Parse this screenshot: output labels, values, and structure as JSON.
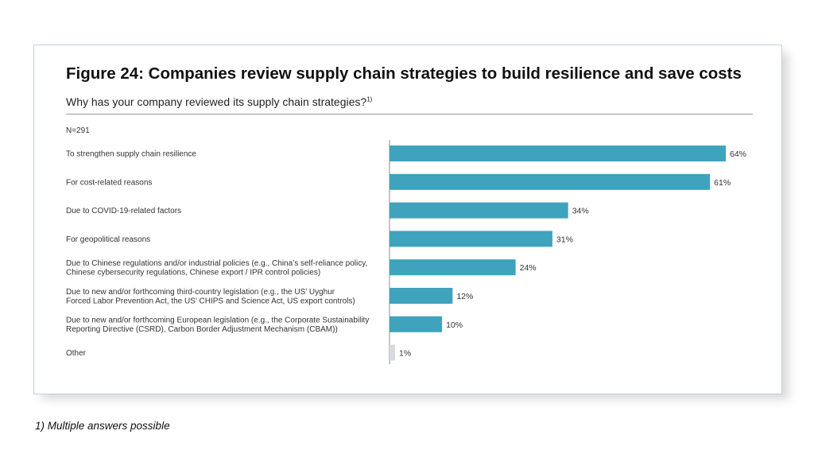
{
  "figure": {
    "title": "Figure 24: Companies review supply chain strategies to build resilience and save costs",
    "subtitle": "Why has your company reviewed its supply chain strategies?",
    "subtitle_note": "1)",
    "sample_size": "N=291",
    "footnote": "1) Multiple answers possible"
  },
  "chart_data": {
    "type": "bar",
    "orientation": "horizontal",
    "title": "Figure 24: Companies review supply chain strategies to build resilience and save costs",
    "subtitle": "Why has your company reviewed its supply chain strategies?",
    "xlabel": "",
    "ylabel": "",
    "xlim": [
      0,
      64
    ],
    "grid": false,
    "categories": [
      [
        "To strengthen supply chain resilience"
      ],
      [
        "For cost-related reasons"
      ],
      [
        "Due to COVID-19-related factors"
      ],
      [
        "For geopolitical reasons"
      ],
      [
        "Due to Chinese regulations and/or industrial policies (e.g., China’s self-reliance policy,",
        "Chinese cybersecurity regulations, Chinese export / IPR control policies)"
      ],
      [
        "Due to new and/or forthcoming third-country legislation (e.g., the US’ Uyghur",
        "Forced Labor Prevention Act, the US’ CHIPS and Science Act, US export controls)"
      ],
      [
        "Due to new and/or forthcoming European legislation (e.g., the Corporate Sustainability",
        "Reporting Directive (CSRD), Carbon Border Adjustment Mechanism (CBAM))"
      ],
      [
        "Other"
      ]
    ],
    "values": [
      64,
      61,
      34,
      31,
      24,
      12,
      10,
      1
    ],
    "value_labels": [
      "64%",
      "61%",
      "34%",
      "31%",
      "24%",
      "12%",
      "10%",
      "1%"
    ],
    "colors": {
      "bar": "#3fa3bd",
      "other_bar": "#d9dbe0",
      "axis": "#8c8c8c"
    }
  }
}
